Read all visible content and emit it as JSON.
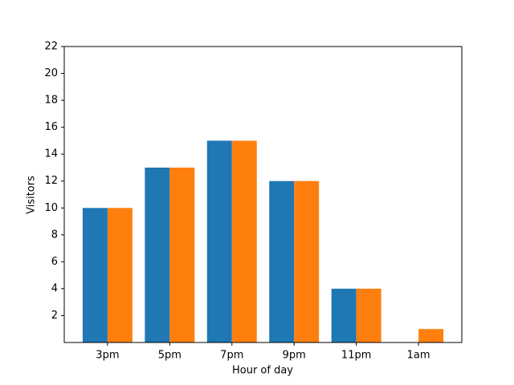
{
  "chart_data": {
    "type": "bar",
    "x_label": "Hour of day",
    "y_label": "Visitors",
    "categories": [
      "3pm",
      "5pm",
      "7pm",
      "9pm",
      "11pm",
      "1am"
    ],
    "series": [
      {
        "color": "#1f77b4",
        "values": [
          10,
          13,
          15,
          12,
          4,
          0
        ]
      },
      {
        "color": "#ff7f0e",
        "values": [
          10,
          13,
          15,
          12,
          4,
          1
        ]
      }
    ],
    "ylim": [
      0,
      22
    ],
    "yticks": [
      2,
      4,
      6,
      8,
      10,
      12,
      14,
      16,
      18,
      20,
      22
    ],
    "grid": false
  }
}
